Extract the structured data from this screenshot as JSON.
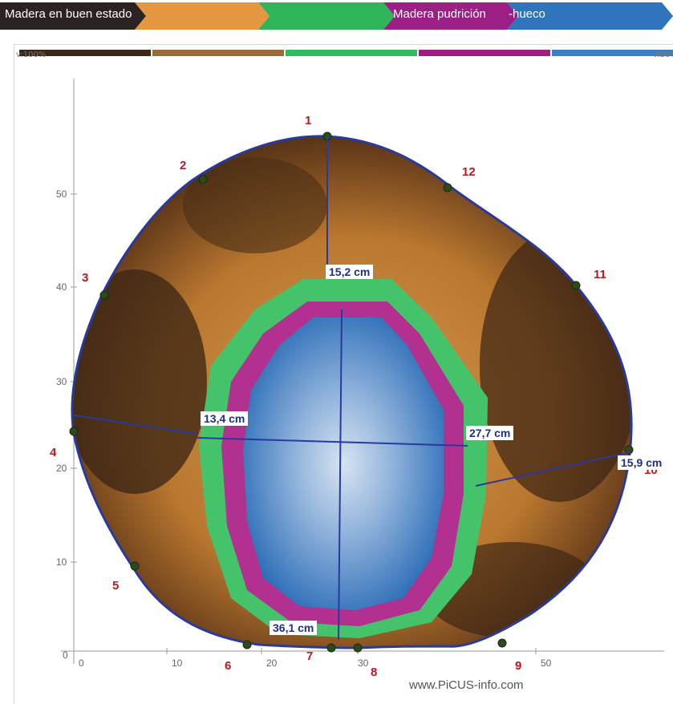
{
  "legend": {
    "good_wood": "Madera en buen estado",
    "rot_wood": "Madera pudrición",
    "hollow": "-hueco",
    "colors": [
      "#2b2321",
      "#e59640",
      "#2fb457",
      "#9b1f84",
      "#2f74bc"
    ]
  },
  "scale": {
    "left_label": "v:100%",
    "right_label": "v:50%",
    "colors": [
      "#3b2515",
      "#9b6a36",
      "#2fbb5e",
      "#9b1f84",
      "#3d7fc4"
    ]
  },
  "axes": {
    "x_ticks": [
      "0",
      "10",
      "20",
      "30",
      "50"
    ],
    "y_ticks": [
      "50",
      "40",
      "30",
      "20",
      "10",
      "0"
    ]
  },
  "sensors": [
    "1",
    "2",
    "3",
    "4",
    "5",
    "6",
    "7",
    "8",
    "9",
    "10",
    "11",
    "12"
  ],
  "measurements": {
    "m1": "15,2 cm",
    "m2": "13,4 cm",
    "m3": "27,7 cm",
    "m4": "15,9 cm",
    "m5": "36,1 cm"
  },
  "watermark": "www.PiCUS-info.com"
}
